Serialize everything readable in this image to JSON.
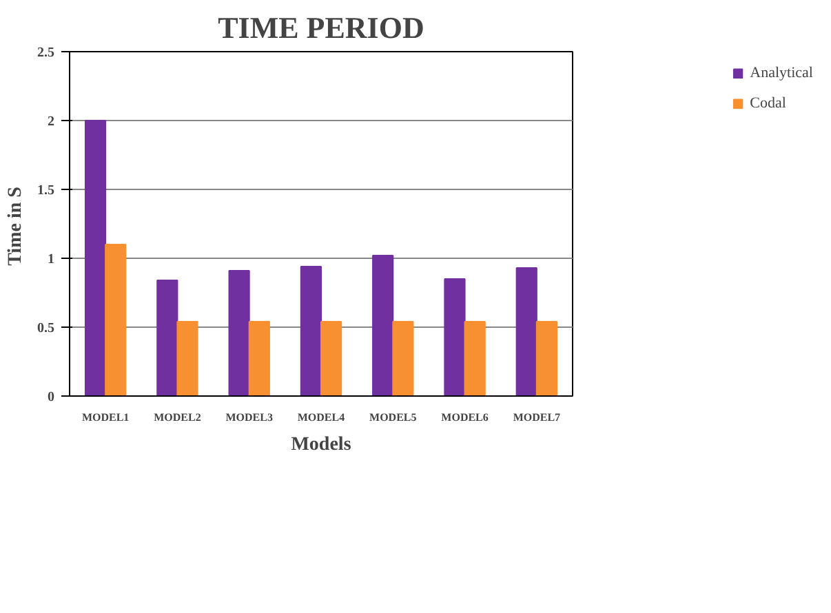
{
  "chart_data": {
    "type": "bar",
    "title": "TIME PERIOD",
    "xlabel": "Models",
    "ylabel": "Time in  S",
    "categories": [
      "MODEL1",
      "MODEL2",
      "MODEL3",
      "MODEL4",
      "MODEL5",
      "MODEL6",
      "MODEL7"
    ],
    "series": [
      {
        "name": "Analytical",
        "color": "#7030a0",
        "values": [
          2.0,
          0.84,
          0.91,
          0.94,
          1.02,
          0.85,
          0.93
        ]
      },
      {
        "name": "Codal",
        "color": "#f79030",
        "values": [
          1.1,
          0.54,
          0.54,
          0.54,
          0.54,
          0.54,
          0.54
        ]
      }
    ],
    "ylim": [
      0,
      2.5
    ],
    "yticks": [
      0,
      0.5,
      1,
      1.5,
      2,
      2.5
    ],
    "grid": "y",
    "legend": "right"
  }
}
